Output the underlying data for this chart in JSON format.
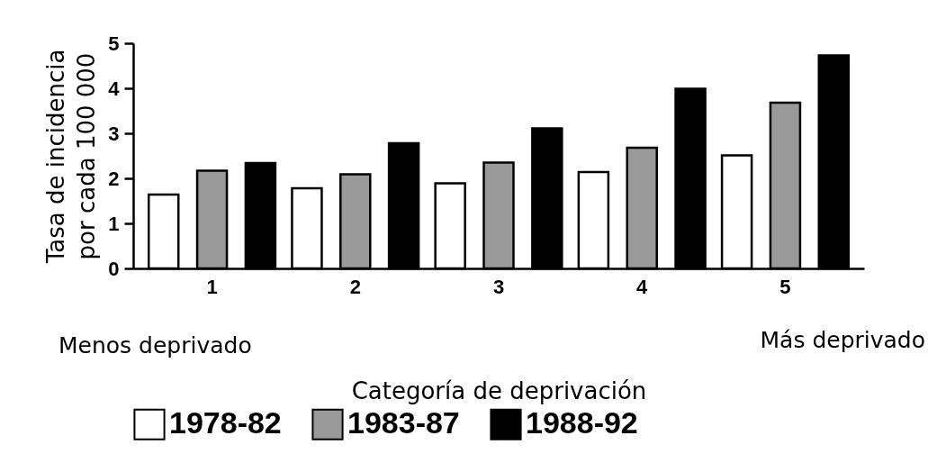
{
  "chart_data": {
    "type": "bar",
    "xlabel": "Categoría de deprivación",
    "ylabel": "Tasa de incidencia\npor cada 100 000",
    "categories": [
      "1",
      "2",
      "3",
      "4",
      "5"
    ],
    "series": [
      {
        "name": "1978-82",
        "color": "#ffffff",
        "values": [
          1.64,
          1.78,
          1.89,
          2.14,
          2.51
        ]
      },
      {
        "name": "1983-87",
        "color": "#999999",
        "values": [
          2.17,
          2.09,
          2.35,
          2.68,
          3.68
        ]
      },
      {
        "name": "1988-92",
        "color": "#000000",
        "values": [
          2.34,
          2.78,
          3.11,
          3.99,
          4.73
        ]
      }
    ],
    "annotations": [
      "Menos deprivado",
      "Más deprivado"
    ],
    "ylim": [
      0,
      5
    ],
    "yticks": [
      0,
      1,
      2,
      3,
      4,
      5
    ],
    "grid": false,
    "legend": "bottom"
  }
}
